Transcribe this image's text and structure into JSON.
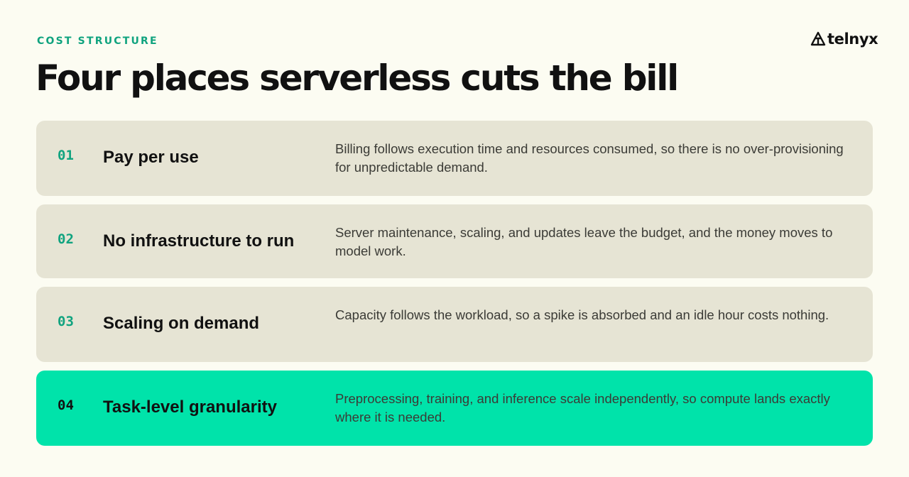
{
  "header": {
    "eyebrow": "COST STRUCTURE",
    "title": "Four places serverless cuts the bill"
  },
  "logo": {
    "wordmark": "telnyx",
    "icon": "telnyx-logo-icon"
  },
  "items": [
    {
      "number": "01",
      "title": "Pay per use",
      "description": "Billing follows execution time and resources consumed, so there is no over-provisioning for unpredictable demand."
    },
    {
      "number": "02",
      "title": "No infrastructure to run",
      "description": "Server maintenance, scaling, and updates leave the budget, and the money moves to model work."
    },
    {
      "number": "03",
      "title": "Scaling on demand",
      "description": "Capacity follows the workload, so a spike is absorbed and an idle hour costs nothing."
    },
    {
      "number": "04",
      "title": "Task-level granularity",
      "description": "Preprocessing, training, and inference scale independently, so compute lands exactly where it is needed."
    }
  ],
  "colors": {
    "background": "#fcfcf2",
    "card": "#e6e4d4",
    "highlight_card": "#00e3aa",
    "accent_text": "#10a37f",
    "heading": "#111111",
    "body_text": "#3b3b36"
  }
}
